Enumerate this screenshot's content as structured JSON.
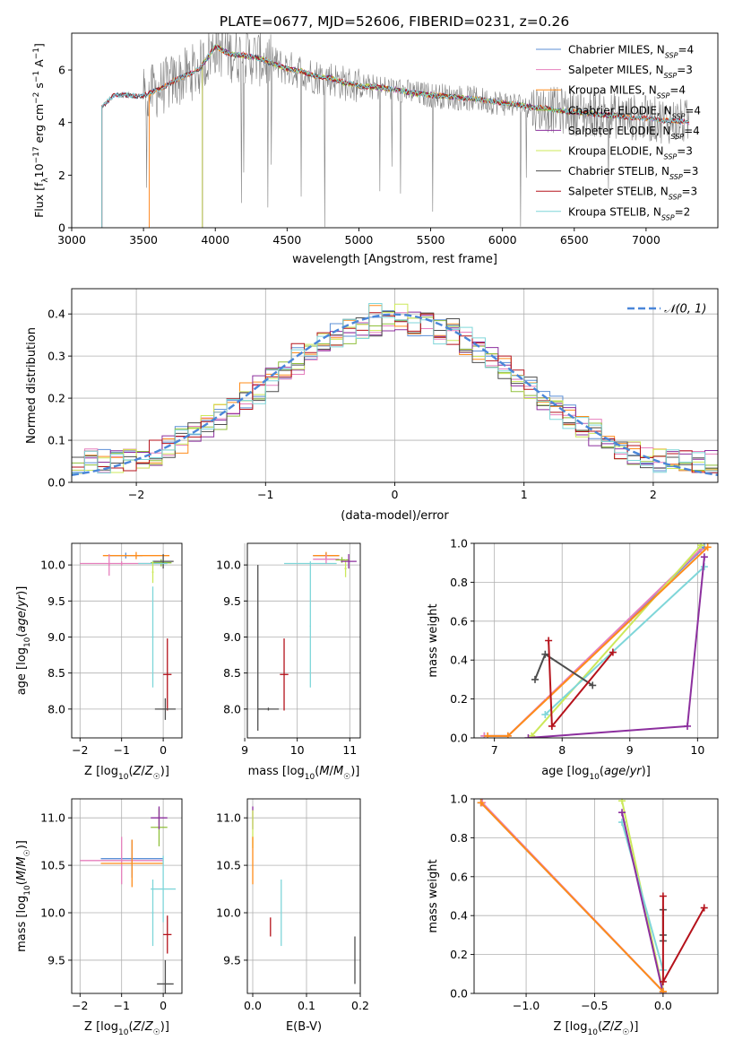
{
  "figure": {
    "title": "PLATE=0677, MJD=52606, FIBERID=0231, z=0.26"
  },
  "colors": {
    "Chabrier MILES": "#5b8fd6",
    "Salpeter MILES": "#e67fbd",
    "Kroupa MILES": "#ff8c1a",
    "Chabrier ELODIE": "#8fbf3a",
    "Salpeter ELODIE": "#8c2f9e",
    "Kroupa ELODIE": "#cce85a",
    "Chabrier STELIB": "#4d4d4d",
    "Salpeter STELIB": "#b5121b",
    "Kroupa STELIB": "#7fd6d9",
    "data": "#808080",
    "normal": "#4a86d9"
  },
  "chart_data": [
    {
      "id": "spectrum",
      "type": "line",
      "title": "PLATE=0677, MJD=52606, FIBERID=0231, z=0.26",
      "xlabel": "wavelength [Angstrom, rest frame]",
      "ylabel": "Flux [f_λ 10^-17 erg cm^-2 s^-1 A^-1]",
      "xlim": [
        3000,
        7500
      ],
      "ylim": [
        0,
        7.4
      ],
      "xticks": [
        3000,
        3500,
        4000,
        4500,
        5000,
        5500,
        6000,
        6500,
        7000
      ],
      "yticks": [
        0,
        2,
        4,
        6
      ],
      "grid": false,
      "legend_position": "top-right",
      "legend": [
        {
          "name": "Chabrier MILES",
          "nssp": "4"
        },
        {
          "name": "Salpeter MILES",
          "nssp": "3"
        },
        {
          "name": "Kroupa MILES",
          "nssp": "4"
        },
        {
          "name": "Chabrier ELODIE",
          "nssp": "4"
        },
        {
          "name": "Salpeter ELODIE",
          "nssp": "4"
        },
        {
          "name": "Kroupa ELODIE",
          "nssp": "3"
        },
        {
          "name": "Chabrier STELIB",
          "nssp": "3"
        },
        {
          "name": "Salpeter STELIB",
          "nssp": "3"
        },
        {
          "name": "Kroupa STELIB",
          "nssp": "2"
        }
      ],
      "nssp_label": "N",
      "nssp_sub": "SSP",
      "continuum": {
        "x": [
          3210,
          3300,
          3400,
          3500,
          3600,
          3700,
          3800,
          3900,
          4000,
          4100,
          4200,
          4300,
          4400,
          4500,
          4600,
          4700,
          4800,
          4900,
          5000,
          5200,
          5400,
          5600,
          5800,
          6000,
          6200,
          6400,
          6600,
          6800,
          7000,
          7200,
          7300
        ],
        "y": [
          4.6,
          5.05,
          5.05,
          5.0,
          5.25,
          5.55,
          5.8,
          6.1,
          6.9,
          6.6,
          6.55,
          6.45,
          6.25,
          6.05,
          5.95,
          5.75,
          5.7,
          5.5,
          5.4,
          5.3,
          5.1,
          5.0,
          4.9,
          4.75,
          4.6,
          4.45,
          4.35,
          4.25,
          4.15,
          4.05,
          4.0
        ]
      },
      "model_starts": {
        "Chabrier MILES": 3210,
        "Salpeter MILES": 3540,
        "Kroupa MILES": 3540,
        "Chabrier ELODIE": 3910,
        "Salpeter ELODIE": 3910,
        "Kroupa ELODIE": 3910,
        "Chabrier STELIB": 3210,
        "Salpeter STELIB": 3210,
        "Kroupa STELIB": 3210
      },
      "model_ends": {
        "Chabrier MILES": 7300,
        "Salpeter MILES": 7300,
        "Kroupa MILES": 7300,
        "Chabrier ELODIE": 6790,
        "Salpeter ELODIE": 6790,
        "Kroupa ELODIE": 6790,
        "Chabrier STELIB": 7300,
        "Salpeter STELIB": 7300,
        "Kroupa STELIB": 7300
      }
    },
    {
      "id": "residuals",
      "type": "line",
      "xlabel": "(data-model)/error",
      "ylabel": "Normed distribution",
      "xlim": [
        -2.5,
        2.5
      ],
      "ylim": [
        0,
        0.46
      ],
      "xticks": [
        -2,
        -1,
        0,
        1,
        2
      ],
      "xticklabels": [
        "−2",
        "−1",
        "0",
        "1",
        "2"
      ],
      "yticks": [
        0.0,
        0.1,
        0.2,
        0.3,
        0.4
      ],
      "yticklabels": [
        "0.0",
        "0.1",
        "0.2",
        "0.3",
        "0.4"
      ],
      "grid": true,
      "legend_position": "top-right",
      "normal_label": "𝒩(0, 1)",
      "bin_width": 0.1
    },
    {
      "id": "age-vs-Z",
      "type": "scatter",
      "xlabel": "Z [log10(Z/Z☉)]",
      "ylabel": "age [log10(age/yr)]",
      "xlim": [
        -2.2,
        0.45
      ],
      "ylim": [
        7.6,
        10.3
      ],
      "xticks": [
        -2,
        -1,
        0
      ],
      "xticklabels": [
        "−2",
        "−1",
        "0"
      ],
      "yticks": [
        8.0,
        8.5,
        9.0,
        9.5,
        10.0
      ],
      "yticklabels": [
        "8.0",
        "8.5",
        "9.0",
        "9.5",
        "10.0"
      ],
      "grid": true,
      "points": [
        {
          "model": "Chabrier MILES",
          "x": -0.9,
          "xerr": 0.4,
          "y": 10.13,
          "yerr": 0.04
        },
        {
          "model": "Salpeter MILES",
          "x": -1.0,
          "xerr": 1.0,
          "y": 10.02,
          "yerr": 0.03
        },
        {
          "model": "Kroupa MILES",
          "x": -0.65,
          "xerr": 0.8,
          "y": 10.13,
          "yerr": 0.05
        },
        {
          "model": "Chabrier ELODIE",
          "x": -0.05,
          "xerr": 0.25,
          "y": 10.03,
          "yerr": 0.05
        },
        {
          "model": "Chabrier STELIB",
          "x": 0.0,
          "xerr": 0.25,
          "y": 10.05,
          "yerr": 0.1
        },
        {
          "model": "Kroupa STELIB",
          "x": -0.25,
          "xerr": 0.35,
          "y": 10.02,
          "yerr": 0.04
        },
        {
          "model": "Kroupa ELODIE",
          "x": -0.25,
          "xerr": 0.02,
          "y": 9.9,
          "yerr": 0.15
        },
        {
          "model": "Salpeter STELIB",
          "x": 0.1,
          "xerr": 0.1,
          "y": 8.48,
          "yerr": 0.5
        },
        {
          "model": "Kroupa STELIB",
          "x": -0.25,
          "xerr": 0.02,
          "y": 9.0,
          "yerr": 0.7
        },
        {
          "model": "Chabrier STELIB",
          "x": 0.05,
          "xerr": 0.25,
          "y": 8.0,
          "yerr": 0.15
        },
        {
          "model": "Salpeter MILES",
          "x": -1.3,
          "xerr": 0.02,
          "y": 10.0,
          "yerr": 0.15
        }
      ]
    },
    {
      "id": "age-vs-mass",
      "type": "scatter",
      "xlabel": "mass [log10(M/M☉)]",
      "xlim": [
        9.05,
        11.2
      ],
      "ylim": [
        7.6,
        10.3
      ],
      "xticks": [
        9,
        10,
        11
      ],
      "xticklabels": [
        "9",
        "10",
        "11"
      ],
      "yticks": [
        8.0,
        8.5,
        9.0,
        9.5,
        10.0
      ],
      "yticklabels": [
        "8.0",
        "8.5",
        "9.0",
        "9.5",
        "10.0"
      ],
      "grid": true,
      "points": [
        {
          "model": "Chabrier STELIB",
          "x": 9.25,
          "xerr": 0.0,
          "y": 8.85,
          "yerr": 1.15
        },
        {
          "model": "Chabrier STELIB",
          "x": 9.45,
          "xerr": 0.2,
          "y": 8.0,
          "yerr": 0.02
        },
        {
          "model": "Salpeter STELIB",
          "x": 9.75,
          "xerr": 0.08,
          "y": 8.48,
          "yerr": 0.5
        },
        {
          "model": "Kroupa STELIB",
          "x": 10.25,
          "xerr": 0.5,
          "y": 10.02,
          "yerr": 0.03
        },
        {
          "model": "Kroupa STELIB",
          "x": 10.25,
          "xerr": 0.01,
          "y": 9.15,
          "yerr": 0.85
        },
        {
          "model": "Chabrier MILES",
          "x": 10.55,
          "xerr": 0.25,
          "y": 10.13,
          "yerr": 0.04
        },
        {
          "model": "Kroupa MILES",
          "x": 10.55,
          "xerr": 0.25,
          "y": 10.13,
          "yerr": 0.05
        },
        {
          "model": "Salpeter MILES",
          "x": 10.55,
          "xerr": 0.25,
          "y": 10.08,
          "yerr": 0.06
        },
        {
          "model": "Chabrier ELODIE",
          "x": 10.85,
          "xerr": 0.12,
          "y": 10.07,
          "yerr": 0.04
        },
        {
          "model": "Kroupa ELODIE",
          "x": 10.92,
          "xerr": 0.02,
          "y": 9.95,
          "yerr": 0.12
        },
        {
          "model": "Salpeter ELODIE",
          "x": 10.98,
          "xerr": 0.15,
          "y": 10.05,
          "yerr": 0.1
        }
      ]
    },
    {
      "id": "weight-vs-age",
      "type": "line",
      "xlabel": "age [log10(age/yr)]",
      "ylabel": "mass weight",
      "xlim": [
        6.7,
        10.3
      ],
      "ylim": [
        0,
        1.0
      ],
      "xticks": [
        7,
        8,
        9,
        10
      ],
      "xticklabels": [
        "7",
        "8",
        "9",
        "10"
      ],
      "yticks": [
        0.0,
        0.2,
        0.4,
        0.6,
        0.8,
        1.0
      ],
      "yticklabels": [
        "0.0",
        "0.2",
        "0.4",
        "0.6",
        "0.8",
        "1.0"
      ],
      "grid": true,
      "series": [
        {
          "model": "Chabrier MILES",
          "x": [
            6.85,
            7.2,
            10.1
          ],
          "y": [
            0.01,
            0.01,
            0.98
          ]
        },
        {
          "model": "Salpeter MILES",
          "x": [
            6.85,
            7.2,
            10.05
          ],
          "y": [
            0.01,
            0.01,
            0.97
          ]
        },
        {
          "model": "Kroupa ELODIE",
          "x": [
            7.55,
            10.05
          ],
          "y": [
            0.01,
            0.99
          ]
        },
        {
          "model": "Kroupa STELIB",
          "x": [
            7.75,
            10.1
          ],
          "y": [
            0.12,
            0.88
          ]
        },
        {
          "model": "Kroupa MILES",
          "x": [
            6.9,
            7.2,
            10.15
          ],
          "y": [
            0.01,
            0.01,
            0.98
          ]
        },
        {
          "model": "Salpeter ELODIE",
          "x": [
            7.5,
            9.85,
            10.1
          ],
          "y": [
            0.0,
            0.06,
            0.93
          ]
        },
        {
          "model": "Chabrier STELIB",
          "x": [
            7.6,
            7.75,
            8.45
          ],
          "y": [
            0.3,
            0.43,
            0.27
          ]
        },
        {
          "model": "Salpeter STELIB",
          "x": [
            7.8,
            7.85,
            8.75
          ],
          "y": [
            0.5,
            0.06,
            0.44
          ]
        }
      ]
    },
    {
      "id": "mass-vs-Z",
      "type": "scatter",
      "xlabel": "Z [log10(Z/Z☉)]",
      "ylabel": "mass [log10(M/M☉)]",
      "xlim": [
        -2.2,
        0.45
      ],
      "ylim": [
        9.15,
        11.2
      ],
      "xticks": [
        -2,
        -1,
        0
      ],
      "xticklabels": [
        "−2",
        "−1",
        "0"
      ],
      "yticks": [
        9.5,
        10.0,
        10.5,
        11.0
      ],
      "yticklabels": [
        "9.5",
        "10.0",
        "10.5",
        "11.0"
      ],
      "grid": true,
      "points": [
        {
          "model": "Chabrier MILES",
          "x": -0.75,
          "xerr": 0.75,
          "y": 10.57,
          "yerr": 0.2
        },
        {
          "model": "Salpeter MILES",
          "x": -1.0,
          "xerr": 1.0,
          "y": 10.55,
          "yerr": 0.25
        },
        {
          "model": "Kroupa MILES",
          "x": -0.75,
          "xerr": 0.75,
          "y": 10.52,
          "yerr": 0.25
        },
        {
          "model": "Chabrier ELODIE",
          "x": -0.1,
          "xerr": 0.2,
          "y": 10.9,
          "yerr": 0.2
        },
        {
          "model": "Salpeter ELODIE",
          "x": -0.1,
          "xerr": 0.2,
          "y": 11.0,
          "yerr": 0.12
        },
        {
          "model": "Kroupa STELIB",
          "x": 0.0,
          "xerr": 0.3,
          "y": 10.25,
          "yerr": 0.35
        },
        {
          "model": "Kroupa STELIB",
          "x": -0.25,
          "xerr": 0.02,
          "y": 10.0,
          "yerr": 0.35
        },
        {
          "model": "Salpeter STELIB",
          "x": 0.1,
          "xerr": 0.1,
          "y": 9.77,
          "yerr": 0.2
        },
        {
          "model": "Chabrier STELIB",
          "x": 0.05,
          "xerr": 0.2,
          "y": 9.25,
          "yerr": 0.25
        }
      ]
    },
    {
      "id": "mass-vs-ebv",
      "type": "scatter",
      "xlabel": "E(B-V)",
      "xlim": [
        -0.01,
        0.2
      ],
      "ylim": [
        9.15,
        11.2
      ],
      "xticks": [
        0.0,
        0.1,
        0.2
      ],
      "xticklabels": [
        "0.0",
        "0.1",
        "0.2"
      ],
      "yticks": [
        9.5,
        10.0,
        10.5,
        11.0
      ],
      "yticklabels": [
        "9.5",
        "10.0",
        "10.5",
        "11.0"
      ],
      "grid": true,
      "points": [
        {
          "model": "Salpeter ELODIE",
          "x": 0.0,
          "xerr": 0.0,
          "y": 11.0,
          "yerr": 0.12
        },
        {
          "model": "Kroupa ELODIE",
          "x": 0.0,
          "xerr": 0.0,
          "y": 10.88,
          "yerr": 0.2
        },
        {
          "model": "Kroupa MILES",
          "x": 0.0,
          "xerr": 0.0,
          "y": 10.55,
          "yerr": 0.25
        },
        {
          "model": "Salpeter STELIB",
          "x": 0.033,
          "xerr": 0.0,
          "y": 9.85,
          "yerr": 0.1
        },
        {
          "model": "Kroupa STELIB",
          "x": 0.053,
          "xerr": 0.0,
          "y": 10.0,
          "yerr": 0.35
        },
        {
          "model": "Chabrier STELIB",
          "x": 0.19,
          "xerr": 0.0,
          "y": 9.5,
          "yerr": 0.25
        }
      ]
    },
    {
      "id": "weight-vs-Z",
      "type": "line",
      "xlabel": "Z [log10(Z/Z☉)]",
      "ylabel": "mass weight",
      "xlim": [
        -1.38,
        0.4
      ],
      "ylim": [
        0,
        1.0
      ],
      "xticks": [
        -1.0,
        -0.5,
        0.0
      ],
      "xticklabels": [
        "−1.0",
        "−0.5",
        "0.0"
      ],
      "yticks": [
        0.0,
        0.2,
        0.4,
        0.6,
        0.8,
        1.0
      ],
      "yticklabels": [
        "0.0",
        "0.2",
        "0.4",
        "0.6",
        "0.8",
        "1.0"
      ],
      "grid": true,
      "series": [
        {
          "model": "Chabrier MILES",
          "x": [
            -1.33,
            0.0
          ],
          "y": [
            0.98,
            0.01
          ]
        },
        {
          "model": "Salpeter MILES",
          "x": [
            -1.32,
            0.0
          ],
          "y": [
            0.98,
            0.01
          ]
        },
        {
          "model": "Kroupa ELODIE",
          "x": [
            -0.3,
            0.0
          ],
          "y": [
            0.99,
            0.01
          ]
        },
        {
          "model": "Kroupa STELIB",
          "x": [
            -0.3,
            0.0
          ],
          "y": [
            0.88,
            0.12
          ]
        },
        {
          "model": "Salpeter ELODIE",
          "x": [
            -0.3,
            0.0
          ],
          "y": [
            0.93,
            0.0
          ]
        },
        {
          "model": "Chabrier STELIB",
          "x": [
            0.0,
            0.0,
            0.0
          ],
          "y": [
            0.3,
            0.43,
            0.27
          ]
        },
        {
          "model": "Salpeter STELIB",
          "x": [
            0.0,
            0.0,
            0.3
          ],
          "y": [
            0.5,
            0.06,
            0.44
          ]
        },
        {
          "model": "Kroupa MILES",
          "x": [
            -1.33,
            0.0
          ],
          "y": [
            0.98,
            0.01
          ]
        }
      ]
    }
  ]
}
